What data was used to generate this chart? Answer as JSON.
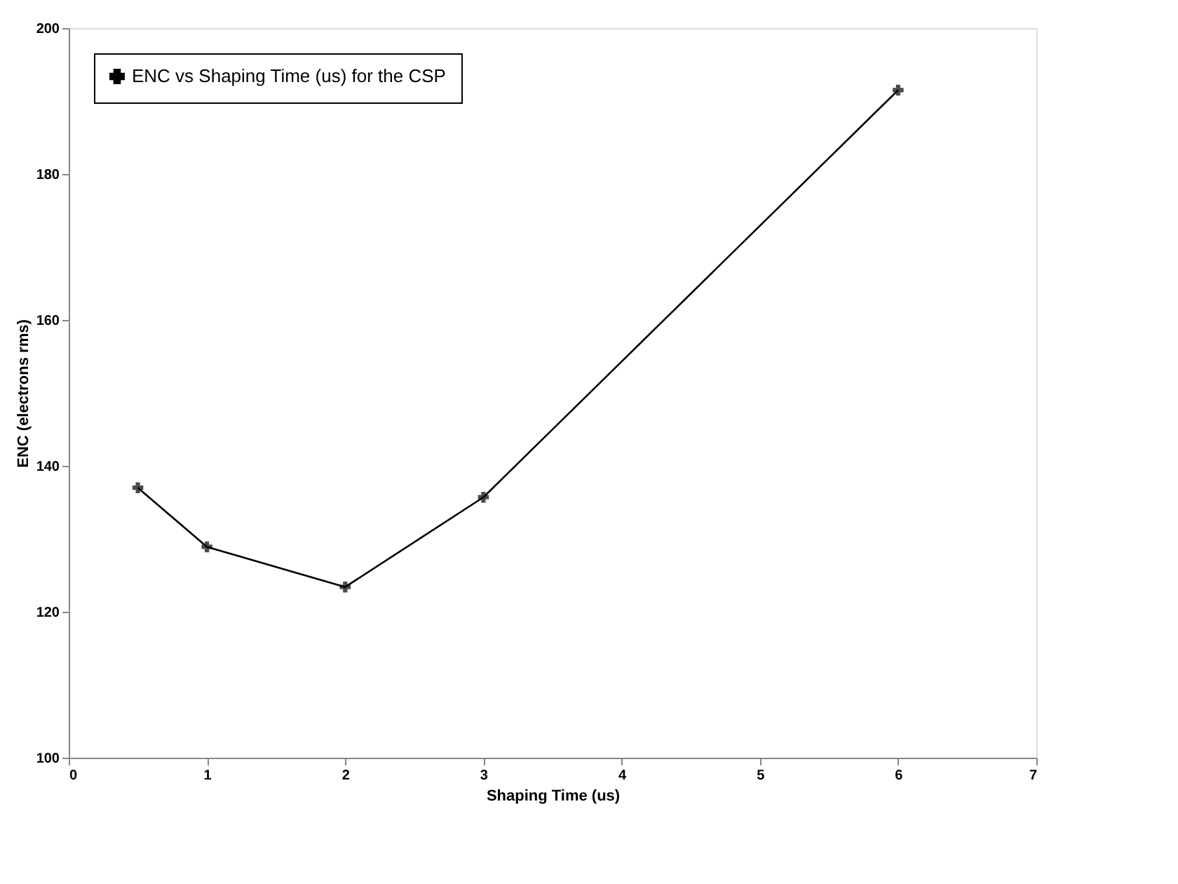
{
  "chart_data": {
    "type": "line",
    "xlabel": "Shaping Time (us)",
    "ylabel": "ENC (electrons rms)",
    "x": [
      0.5,
      1,
      2,
      3,
      6
    ],
    "series": [
      {
        "name": "ENC vs Shaping Time (us) for the CSP",
        "color": "#000000",
        "values": [
          137,
          128.9,
          123.4,
          135.7,
          191.5
        ]
      }
    ],
    "xlim": [
      0,
      7
    ],
    "xticks": [
      0,
      1,
      2,
      3,
      4,
      5,
      6,
      7
    ],
    "ylim": [
      100,
      200
    ],
    "yticks": [
      100,
      120,
      140,
      160,
      180,
      200
    ],
    "grid": false,
    "legend": "top left",
    "marker": "cross",
    "line_style": "solid"
  }
}
